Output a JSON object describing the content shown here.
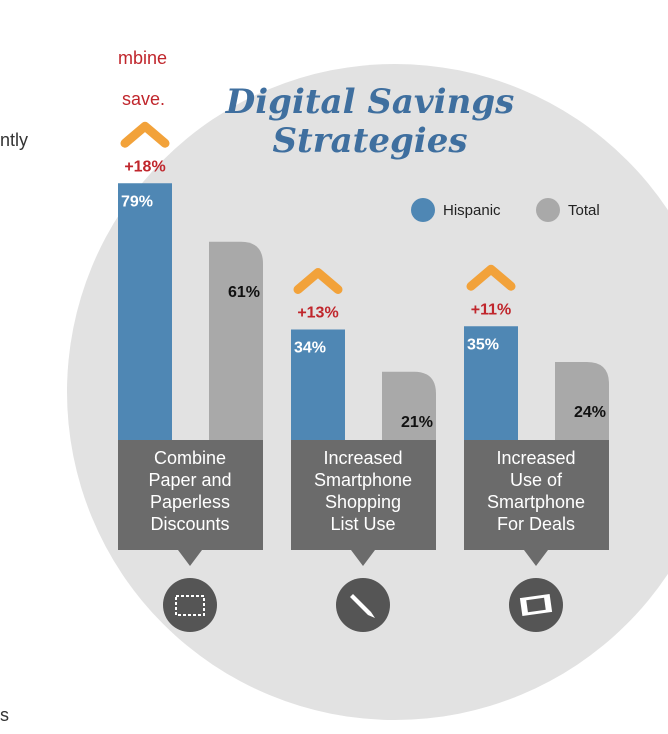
{
  "fragments": [
    "mbine",
    "save.",
    "ntly",
    "s"
  ],
  "chart_data": {
    "type": "bar",
    "title": [
      "Digital Savings",
      "Strategies"
    ],
    "categories": [
      [
        "Combine",
        "Paper and",
        "Paperless",
        "Discounts"
      ],
      [
        "Increased",
        "Smartphone",
        "Shopping",
        "List Use"
      ],
      [
        "Increased",
        "Use of",
        "Smartphone",
        "For Deals"
      ]
    ],
    "series": [
      {
        "name": "Hispanic",
        "color": "#4f87b4",
        "values": [
          79,
          34,
          35
        ],
        "value_labels": [
          "79%",
          "34%",
          "35%"
        ]
      },
      {
        "name": "Total",
        "color": "#a9a9a9",
        "values": [
          61,
          21,
          24
        ],
        "value_labels": [
          "61%",
          "21%",
          "24%"
        ]
      }
    ],
    "annotations": [
      "+18%",
      "+13%",
      "+11%"
    ]
  }
}
